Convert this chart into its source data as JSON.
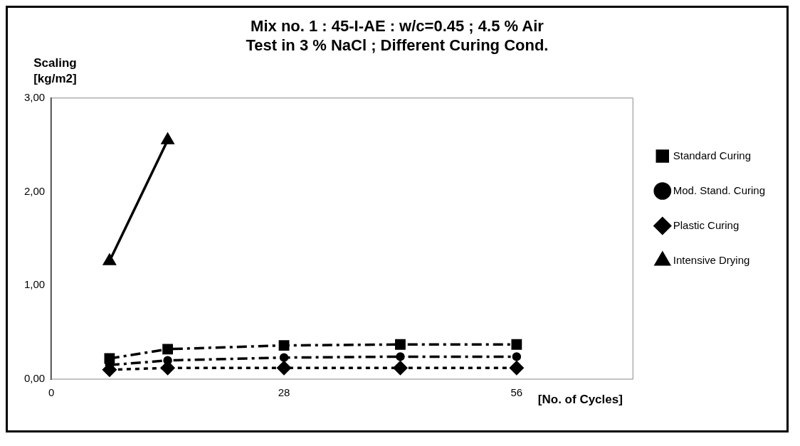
{
  "chart_data": {
    "type": "line",
    "title": [
      "Mix no. 1 : 45-I-AE : w/c=0.45 ; 4.5 % Air",
      "Test in 3 % NaCl ; Different Curing Cond."
    ],
    "xlabel": "[No. of Cycles]",
    "ylabel": "Scaling [kg/m2]",
    "x": [
      7,
      14,
      28,
      42,
      56
    ],
    "series": [
      {
        "name": "Standard Curing",
        "color": "#000000",
        "marker": "square",
        "line_style": "dashed",
        "values": [
          0.22,
          0.32,
          0.36,
          0.37,
          0.37
        ]
      },
      {
        "name": "Mod. Stand. Curing",
        "color": "#000000",
        "marker": "circle",
        "line_style": "dashed",
        "values": [
          0.15,
          0.2,
          0.23,
          0.24,
          0.24
        ]
      },
      {
        "name": "Plastic Curing",
        "color": "#000000",
        "marker": "diamond",
        "line_style": "dotted",
        "values": [
          0.1,
          0.12,
          0.12,
          0.12,
          0.12
        ]
      },
      {
        "name": "Intensive Drying",
        "color": "#000000",
        "marker": "triangle",
        "line_style": "solid",
        "values": [
          1.26,
          2.55,
          null,
          null,
          null
        ]
      }
    ],
    "xlim": [
      0,
      70
    ],
    "xticks": [
      0,
      28,
      56
    ],
    "ylim": [
      0,
      3
    ],
    "yticks": [
      {
        "value": 0,
        "label": "0,00"
      },
      {
        "value": 1,
        "label": "1,00"
      },
      {
        "value": 2,
        "label": "2,00"
      },
      {
        "value": 3,
        "label": "3,00"
      }
    ],
    "grid": false,
    "legend": "right"
  }
}
